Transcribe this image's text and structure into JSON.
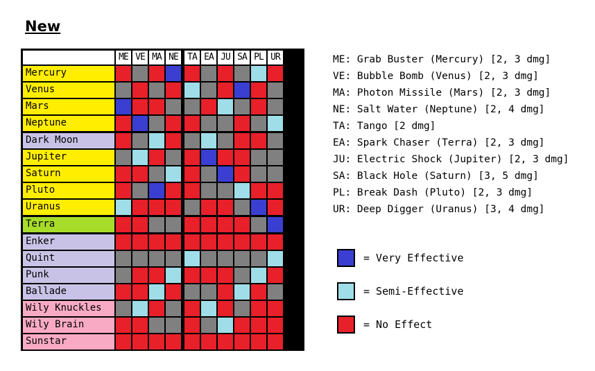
{
  "title": "New",
  "columns": [
    "ME",
    "VE",
    "MA",
    "NE",
    "TA",
    "EA",
    "JU",
    "SA",
    "PL",
    "UR"
  ],
  "colors": {
    "V": "#3a3fd1",
    "S": "#9fdde8",
    "N": "#e8202a",
    "X": "#808080",
    "yellow": "#ffee00",
    "lavender": "#c8c3e6",
    "green": "#a8dc2a",
    "pink": "#f8aac4"
  },
  "rows": [
    {
      "name": "Mercury",
      "color": "yellow",
      "cells": "NXNVNXNXSN"
    },
    {
      "name": "Venus",
      "color": "yellow",
      "cells": "XNXNSXNVNX"
    },
    {
      "name": "Mars",
      "color": "yellow",
      "cells": "VNNXXNSXNX"
    },
    {
      "name": "Neptune",
      "color": "yellow",
      "cells": "NVXNNXXNXS"
    },
    {
      "name": "Dark Moon",
      "color": "lavender",
      "cells": "NXSNXSXNNX"
    },
    {
      "name": "Jupiter",
      "color": "yellow",
      "cells": "XSNXNVNNXX"
    },
    {
      "name": "Saturn",
      "color": "yellow",
      "cells": "NNXSNXVNXX"
    },
    {
      "name": "Pluto",
      "color": "yellow",
      "cells": "NXVNNXXSNN"
    },
    {
      "name": "Uranus",
      "color": "yellow",
      "cells": "SNNNXNNXVN"
    },
    {
      "name": "Terra",
      "color": "green",
      "cells": "NNXXNNNNXV"
    },
    {
      "name": "Enker",
      "color": "lavender",
      "cells": "NNNNNNNNNN"
    },
    {
      "name": "Quint",
      "color": "lavender",
      "cells": "XXXXSXXXXS"
    },
    {
      "name": "Punk",
      "color": "lavender",
      "cells": "XNNSNNNXSN"
    },
    {
      "name": "Ballade",
      "color": "lavender",
      "cells": "NNSNXXNSNX"
    },
    {
      "name": "Wily Knuckles",
      "color": "pink",
      "cells": "XSNXNSNXNN"
    },
    {
      "name": "Wily Brain",
      "color": "pink",
      "cells": "NNXXNXSNNN"
    },
    {
      "name": "Sunstar",
      "color": "pink",
      "cells": "NNNNNNNNNN"
    }
  ],
  "abbreviations": [
    "ME: Grab Buster (Mercury) [2, 3 dmg]",
    "VE: Bubble Bomb (Venus) [2, 3 dmg]",
    "MA: Photon Missile (Mars) [2, 3 dmg]",
    "NE: Salt Water (Neptune) [2, 4 dmg]",
    "TA: Tango [2 dmg]",
    "EA: Spark Chaser (Terra) [2, 3 dmg]",
    "JU: Electric Shock (Jupiter) [2, 3 dmg]",
    "SA: Black Hole (Saturn) [3, 5 dmg]",
    "PL: Break Dash (Pluto) [2, 3 dmg]",
    "UR: Deep Digger (Uranus) [3, 4 dmg]"
  ],
  "key": [
    {
      "code": "V",
      "label": "= Very Effective"
    },
    {
      "code": "S",
      "label": "= Semi-Effective"
    },
    {
      "code": "N",
      "label": "= No Effect"
    }
  ]
}
